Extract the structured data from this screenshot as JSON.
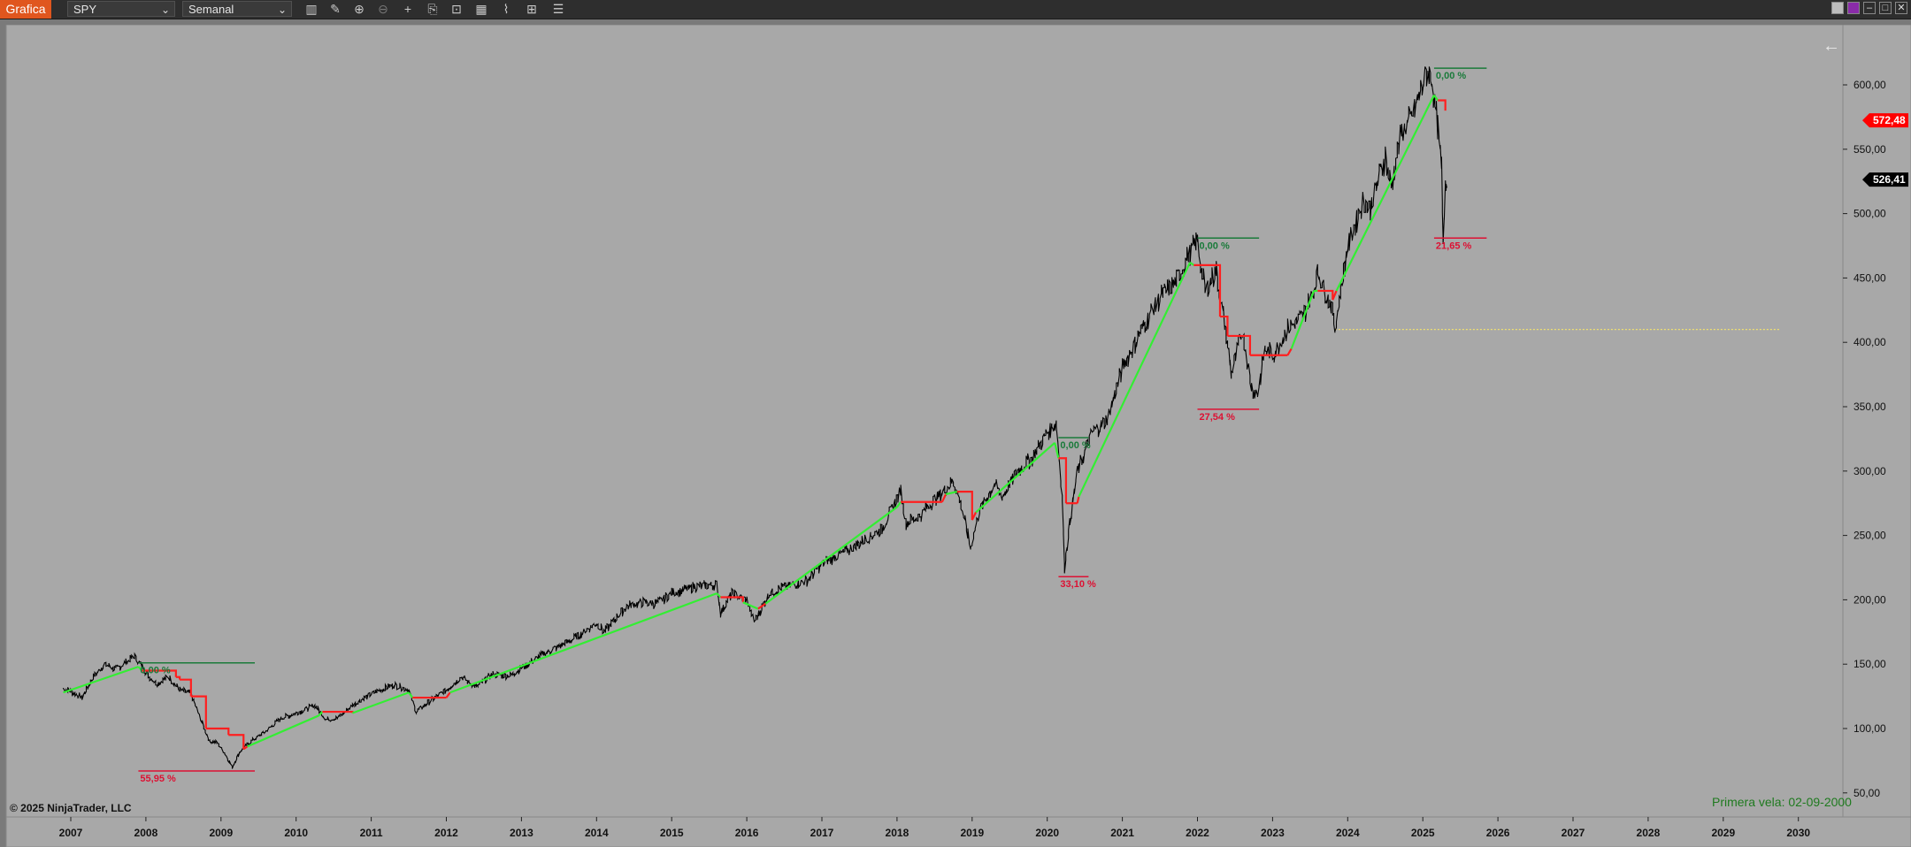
{
  "toolbar": {
    "title": "Grafica",
    "instrument": "SPY",
    "period": "Semanal",
    "icons": [
      "bar-type-icon",
      "draw-icon",
      "zoom-in-icon",
      "zoom-out-icon",
      "crosshair-icon",
      "properties-icon",
      "data-box-icon",
      "indicators-icon",
      "strategies-icon",
      "templates-icon",
      "more-icon"
    ],
    "window_icons": [
      "link-icon",
      "color-icon",
      "minimize-icon",
      "maximize-icon",
      "close-icon"
    ]
  },
  "chart": {
    "copyright": "© 2025 NinjaTrader, LLC",
    "first_bar": "Primera vela: 02-09-2000",
    "back_arrow": "←",
    "colors": {
      "background": "#a8a8a8",
      "up": "#33ee33",
      "down": "#ff1f1f",
      "peak": "#1a7a3a",
      "drawdown": "#dd1133",
      "price": "#000000",
      "marker_red": "#ff0000",
      "marker_black": "#000000",
      "dotted": "#f0e070"
    }
  },
  "chart_data": {
    "type": "line",
    "title": "",
    "x_tick_labels": [
      "2007",
      "2008",
      "2009",
      "2010",
      "2011",
      "2012",
      "2013",
      "2014",
      "2015",
      "2016",
      "2017",
      "2018",
      "2019",
      "2020",
      "2021",
      "2022",
      "2023",
      "2024",
      "2025",
      "2026",
      "2027",
      "2028",
      "2029",
      "2030"
    ],
    "y_tick_labels": [
      "600,00",
      "550,00",
      "500,00",
      "450,00",
      "400,00",
      "350,00",
      "300,00",
      "250,00",
      "200,00",
      "150,00",
      "100,00",
      "50,00"
    ],
    "y_ticks": [
      600,
      550,
      500,
      450,
      400,
      350,
      300,
      250,
      200,
      150,
      100,
      50
    ],
    "xlim": [
      2006.8,
      2030.8
    ],
    "ylim": [
      40,
      625
    ],
    "last_price_markers": [
      {
        "label": "572,48",
        "value": 572.48,
        "style": "red"
      },
      {
        "label": "526,41",
        "value": 526.41,
        "style": "black"
      }
    ],
    "price_series": [
      [
        2006.9,
        131
      ],
      [
        2007.0,
        129
      ],
      [
        2007.15,
        124
      ],
      [
        2007.3,
        140
      ],
      [
        2007.45,
        150
      ],
      [
        2007.6,
        146
      ],
      [
        2007.75,
        152
      ],
      [
        2007.85,
        156
      ],
      [
        2007.95,
        148
      ],
      [
        2008.05,
        140
      ],
      [
        2008.15,
        135
      ],
      [
        2008.3,
        140
      ],
      [
        2008.45,
        130
      ],
      [
        2008.6,
        127
      ],
      [
        2008.75,
        104
      ],
      [
        2008.85,
        90
      ],
      [
        2008.95,
        89
      ],
      [
        2009.05,
        81
      ],
      [
        2009.15,
        70
      ],
      [
        2009.25,
        82
      ],
      [
        2009.4,
        90
      ],
      [
        2009.6,
        98
      ],
      [
        2009.8,
        108
      ],
      [
        2010.0,
        112
      ],
      [
        2010.25,
        118
      ],
      [
        2010.4,
        107
      ],
      [
        2010.55,
        108
      ],
      [
        2010.75,
        118
      ],
      [
        2011.0,
        127
      ],
      [
        2011.3,
        134
      ],
      [
        2011.5,
        130
      ],
      [
        2011.6,
        113
      ],
      [
        2011.75,
        120
      ],
      [
        2012.0,
        130
      ],
      [
        2012.2,
        140
      ],
      [
        2012.4,
        132
      ],
      [
        2012.6,
        142
      ],
      [
        2012.85,
        141
      ],
      [
        2013.0,
        147
      ],
      [
        2013.3,
        158
      ],
      [
        2013.5,
        164
      ],
      [
        2013.7,
        170
      ],
      [
        2014.0,
        182
      ],
      [
        2014.1,
        175
      ],
      [
        2014.4,
        195
      ],
      [
        2014.6,
        198
      ],
      [
        2014.8,
        197
      ],
      [
        2015.0,
        205
      ],
      [
        2015.3,
        210
      ],
      [
        2015.6,
        212
      ],
      [
        2015.65,
        190
      ],
      [
        2015.8,
        205
      ],
      [
        2016.0,
        200
      ],
      [
        2016.1,
        183
      ],
      [
        2016.3,
        205
      ],
      [
        2016.5,
        210
      ],
      [
        2016.8,
        215
      ],
      [
        2017.0,
        228
      ],
      [
        2017.4,
        240
      ],
      [
        2017.8,
        255
      ],
      [
        2018.05,
        285
      ],
      [
        2018.12,
        260
      ],
      [
        2018.3,
        265
      ],
      [
        2018.5,
        278
      ],
      [
        2018.75,
        292
      ],
      [
        2018.85,
        275
      ],
      [
        2018.98,
        240
      ],
      [
        2019.1,
        270
      ],
      [
        2019.3,
        290
      ],
      [
        2019.4,
        280
      ],
      [
        2019.6,
        300
      ],
      [
        2019.8,
        310
      ],
      [
        2020.0,
        330
      ],
      [
        2020.12,
        338
      ],
      [
        2020.2,
        280
      ],
      [
        2020.23,
        225
      ],
      [
        2020.3,
        260
      ],
      [
        2020.4,
        300
      ],
      [
        2020.6,
        330
      ],
      [
        2020.8,
        340
      ],
      [
        2021.0,
        380
      ],
      [
        2021.3,
        415
      ],
      [
        2021.5,
        435
      ],
      [
        2021.7,
        445
      ],
      [
        2021.9,
        470
      ],
      [
        2022.0,
        478
      ],
      [
        2022.1,
        440
      ],
      [
        2022.25,
        455
      ],
      [
        2022.4,
        400
      ],
      [
        2022.45,
        375
      ],
      [
        2022.6,
        410
      ],
      [
        2022.72,
        365
      ],
      [
        2022.8,
        360
      ],
      [
        2022.9,
        395
      ],
      [
        2023.0,
        390
      ],
      [
        2023.2,
        410
      ],
      [
        2023.4,
        420
      ],
      [
        2023.55,
        440
      ],
      [
        2023.6,
        455
      ],
      [
        2023.8,
        425
      ],
      [
        2023.83,
        410
      ],
      [
        2024.0,
        475
      ],
      [
        2024.2,
        510
      ],
      [
        2024.3,
        505
      ],
      [
        2024.5,
        545
      ],
      [
        2024.58,
        520
      ],
      [
        2024.7,
        560
      ],
      [
        2024.85,
        575
      ],
      [
        2024.97,
        595
      ],
      [
        2025.05,
        610
      ],
      [
        2025.12,
        605
      ],
      [
        2025.18,
        575
      ],
      [
        2025.25,
        535
      ],
      [
        2025.27,
        482
      ],
      [
        2025.3,
        525
      ],
      [
        2025.32,
        520
      ]
    ],
    "stop_series": [
      [
        2006.9,
        128,
        "up"
      ],
      [
        2007.9,
        148,
        "up"
      ],
      [
        2007.95,
        145,
        "down"
      ],
      [
        2008.4,
        140,
        "down"
      ],
      [
        2008.45,
        138,
        "down"
      ],
      [
        2008.6,
        125,
        "down"
      ],
      [
        2008.8,
        100,
        "down"
      ],
      [
        2009.1,
        95,
        "down"
      ],
      [
        2009.3,
        84,
        "down"
      ],
      [
        2009.35,
        86,
        "up"
      ],
      [
        2010.3,
        110,
        "up"
      ],
      [
        2010.35,
        113,
        "down"
      ],
      [
        2010.7,
        113,
        "down"
      ],
      [
        2010.75,
        112,
        "up"
      ],
      [
        2011.5,
        128,
        "up"
      ],
      [
        2011.55,
        124,
        "down"
      ],
      [
        2012.0,
        124,
        "down"
      ],
      [
        2012.05,
        128,
        "up"
      ],
      [
        2015.6,
        205,
        "up"
      ],
      [
        2015.65,
        202,
        "down"
      ],
      [
        2015.9,
        202,
        "down"
      ],
      [
        2015.95,
        198,
        "up"
      ],
      [
        2016.15,
        193,
        "down"
      ],
      [
        2016.25,
        197,
        "up"
      ],
      [
        2018.0,
        272,
        "up"
      ],
      [
        2018.05,
        276,
        "down"
      ],
      [
        2018.6,
        276,
        "down"
      ],
      [
        2018.65,
        282,
        "up"
      ],
      [
        2018.8,
        284,
        "down"
      ],
      [
        2019.0,
        262,
        "down"
      ],
      [
        2019.05,
        268,
        "up"
      ],
      [
        2020.1,
        322,
        "up"
      ],
      [
        2020.15,
        310,
        "down"
      ],
      [
        2020.25,
        275,
        "down"
      ],
      [
        2020.4,
        275,
        "down"
      ],
      [
        2020.42,
        280,
        "up"
      ],
      [
        2021.9,
        462,
        "up"
      ],
      [
        2021.95,
        460,
        "down"
      ],
      [
        2022.3,
        420,
        "down"
      ],
      [
        2022.4,
        405,
        "down"
      ],
      [
        2022.6,
        405,
        "down"
      ],
      [
        2022.7,
        390,
        "down"
      ],
      [
        2023.2,
        390,
        "down"
      ],
      [
        2023.25,
        395,
        "up"
      ],
      [
        2023.55,
        440,
        "up"
      ],
      [
        2023.6,
        440,
        "down"
      ],
      [
        2023.8,
        433,
        "down"
      ],
      [
        2023.85,
        440,
        "up"
      ],
      [
        2025.15,
        592,
        "up"
      ],
      [
        2025.2,
        588,
        "down"
      ],
      [
        2025.3,
        580,
        "down"
      ]
    ],
    "peak_markers": [
      {
        "label": "0,00 %",
        "x0": 2007.9,
        "x1": 2009.45,
        "y": 151
      },
      {
        "label": "0,00 %",
        "x0": 2020.15,
        "x1": 2020.55,
        "y": 326
      },
      {
        "label": "0,00 %",
        "x0": 2022.0,
        "x1": 2022.82,
        "y": 481
      },
      {
        "label": "0,00 %",
        "x0": 2025.15,
        "x1": 2025.85,
        "y": 613
      }
    ],
    "drawdown_markers": [
      {
        "label": "55,95 %",
        "x0": 2007.9,
        "x1": 2009.45,
        "y": 67
      },
      {
        "label": "33,10 %",
        "x0": 2020.15,
        "x1": 2020.55,
        "y": 218
      },
      {
        "label": "27,54 %",
        "x0": 2022.0,
        "x1": 2022.82,
        "y": 348
      },
      {
        "label": "21,65 %",
        "x0": 2025.15,
        "x1": 2025.85,
        "y": 481
      }
    ],
    "horizontal_line": {
      "y": 410,
      "x0": 2023.83,
      "x1": 2029.75
    }
  }
}
